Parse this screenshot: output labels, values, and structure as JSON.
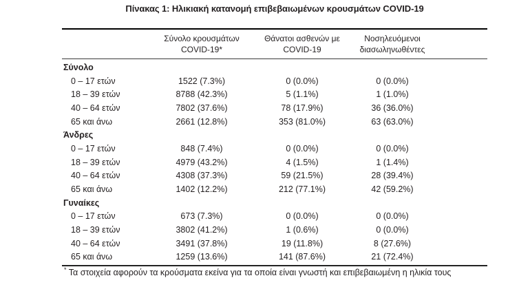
{
  "title": "Πίνακας 1: Ηλικιακή κατανομή επιβεβαιωμένων κρουσμάτων COVID-19",
  "colors": {
    "text": "#231f20",
    "rule_top": "#000000",
    "rule_mid": "#3a3a3a",
    "rule_bottom": "#222222",
    "background": "#ffffff"
  },
  "table": {
    "columns": [
      {
        "line1": "Σύνολο κρουσμάτων",
        "line2": "COVID-19*"
      },
      {
        "line1": "Θάνατοι ασθενών με",
        "line2": "COVID-19"
      },
      {
        "line1": "Νοσηλευόμενοι",
        "line2": "διασωληνωθέντες"
      }
    ],
    "sections": [
      {
        "name": "Σύνολο",
        "rows": [
          {
            "label": "0 – 17 ετών",
            "cases": "1522 (7.3%)",
            "deaths": "0 (0.0%)",
            "intubated": "0 (0.0%)"
          },
          {
            "label": "18 – 39 ετών",
            "cases": "8788 (42.3%)",
            "deaths": "5 (1.1%)",
            "intubated": "1 (1.0%)"
          },
          {
            "label": "40 – 64 ετών",
            "cases": "7802 (37.6%)",
            "deaths": "78 (17.9%)",
            "intubated": "36 (36.0%)"
          },
          {
            "label": "65 και άνω",
            "cases": "2661 (12.8%)",
            "deaths": "353 (81.0%)",
            "intubated": "63 (63.0%)"
          }
        ]
      },
      {
        "name": "Άνδρες",
        "rows": [
          {
            "label": "0 – 17 ετών",
            "cases": "848 (7.4%)",
            "deaths": "0 (0.0%)",
            "intubated": "0 (0.0%)"
          },
          {
            "label": "18 – 39 ετών",
            "cases": "4979 (43.2%)",
            "deaths": "4 (1.5%)",
            "intubated": "1 (1.4%)"
          },
          {
            "label": "40 – 64 ετών",
            "cases": "4308 (37.3%)",
            "deaths": "59 (21.5%)",
            "intubated": "28 (39.4%)"
          },
          {
            "label": "65 και άνω",
            "cases": "1402 (12.2%)",
            "deaths": "212 (77.1%)",
            "intubated": "42 (59.2%)"
          }
        ]
      },
      {
        "name": "Γυναίκες",
        "rows": [
          {
            "label": "0 – 17 ετών",
            "cases": "673 (7.3%)",
            "deaths": "0 (0.0%)",
            "intubated": "0 (0.0%)"
          },
          {
            "label": "18 – 39 ετών",
            "cases": "3802 (41.2%)",
            "deaths": "1 (0.6%)",
            "intubated": "0 (0.0%)"
          },
          {
            "label": "40 – 64 ετών",
            "cases": "3491 (37.8%)",
            "deaths": "19 (11.8%)",
            "intubated": "8 (27.6%)"
          },
          {
            "label": "65 και άνω",
            "cases": "1259 (13.6%)",
            "deaths": "141 (87.6%)",
            "intubated": "21 (72.4%)"
          }
        ]
      }
    ],
    "footnote_marker": "*",
    "footnote": "Τα στοιχεία αφορούν τα κρούσματα εκείνα για τα οποία είναι γνωστή και επιβεβαιωμένη η ηλικία τους"
  }
}
